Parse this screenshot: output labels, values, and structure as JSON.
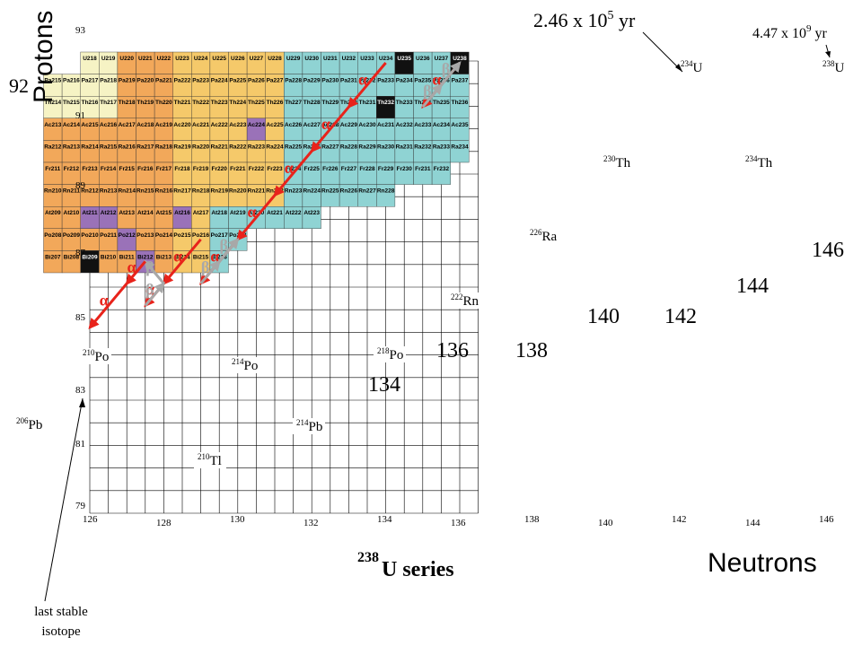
{
  "labels": {
    "protons": "Protons",
    "neutrons": "Neutrons",
    "series": "U series",
    "series_mass": "238",
    "last_stable": [
      "last stable",
      "isotope"
    ],
    "half_life_234u": "2.46 x 10",
    "half_life_234u_exp": "5",
    "half_life_234u_unit": " yr",
    "half_life_238u": "4.47 x 10",
    "half_life_238u_exp": "9",
    "half_life_238u_unit": " yr",
    "z92": "92"
  },
  "y_ticks": [
    "93",
    "91",
    "89",
    "87",
    "85",
    "83",
    "81",
    "79"
  ],
  "x_ticks": [
    "126",
    "128",
    "130",
    "132",
    "134",
    "136",
    "138",
    "140",
    "142",
    "144",
    "146"
  ],
  "big_neutron_labels": [
    "134",
    "136",
    "138",
    "140",
    "142",
    "144",
    "146"
  ],
  "nuclides": [
    {
      "mass": "238",
      "sym": "U"
    },
    {
      "mass": "234",
      "sym": "U"
    },
    {
      "mass": "234",
      "sym": "Th"
    },
    {
      "mass": "230",
      "sym": "Th"
    },
    {
      "mass": "226",
      "sym": "Ra"
    },
    {
      "mass": "222",
      "sym": "Rn"
    },
    {
      "mass": "218",
      "sym": "Po"
    },
    {
      "mass": "214",
      "sym": "Pb"
    },
    {
      "mass": "214",
      "sym": "Po"
    },
    {
      "mass": "210",
      "sym": "Po"
    },
    {
      "mass": "210",
      "sym": "Tl"
    },
    {
      "mass": "206",
      "sym": "Pb"
    }
  ],
  "decay_labels": {
    "alpha": "α",
    "beta": "β"
  },
  "grid_rows": [
    {
      "z": "U",
      "cells": [
        "U218",
        "U219",
        "U220",
        "U221",
        "U222",
        "U223",
        "U224",
        "U225",
        "U226",
        "U227",
        "U228",
        "U229",
        "U230",
        "U231",
        "U232",
        "U233",
        "U234",
        "U235",
        "U236",
        "U237",
        "U238"
      ]
    },
    {
      "z": "Pa",
      "cells": [
        "Pa215",
        "Pa216",
        "Pa217",
        "Pa218",
        "Pa219",
        "Pa220",
        "Pa221",
        "Pa222",
        "Pa223",
        "Pa224",
        "Pa225",
        "Pa226",
        "Pa227",
        "Pa228",
        "Pa229",
        "Pa230",
        "Pa231",
        "Pa232",
        "Pa233",
        "Pa234",
        "Pa235",
        "Pa236",
        "Pa237"
      ]
    },
    {
      "z": "Th",
      "cells": [
        "Th214",
        "Th215",
        "Th216",
        "Th217",
        "Th218",
        "Th219",
        "Th220",
        "Th221",
        "Th222",
        "Th223",
        "Th224",
        "Th225",
        "Th226",
        "Th227",
        "Th228",
        "Th229",
        "Th230",
        "Th231",
        "Th232",
        "Th233",
        "Th234",
        "Th235",
        "Th236"
      ]
    },
    {
      "z": "Ac",
      "cells": [
        "Ac213",
        "Ac214",
        "Ac215",
        "Ac216",
        "Ac217",
        "Ac218",
        "Ac219",
        "Ac220",
        "Ac221",
        "Ac222",
        "Ac223",
        "Ac224",
        "Ac225",
        "Ac226",
        "Ac227",
        "Ac228",
        "Ac229",
        "Ac230",
        "Ac231",
        "Ac232",
        "Ac233",
        "Ac234",
        "Ac235"
      ]
    },
    {
      "z": "Ra",
      "cells": [
        "Ra212",
        "Ra213",
        "Ra214",
        "Ra215",
        "Ra216",
        "Ra217",
        "Ra218",
        "Ra219",
        "Ra220",
        "Ra221",
        "Ra222",
        "Ra223",
        "Ra224",
        "Ra225",
        "Ra226",
        "Ra227",
        "Ra228",
        "Ra229",
        "Ra230",
        "Ra231",
        "Ra232",
        "Ra233",
        "Ra234"
      ]
    },
    {
      "z": "Fr",
      "cells": [
        "Fr211",
        "Fr212",
        "Fr213",
        "Fr214",
        "Fr215",
        "Fr216",
        "Fr217",
        "Fr218",
        "Fr219",
        "Fr220",
        "Fr221",
        "Fr222",
        "Fr223",
        "Fr224",
        "Fr225",
        "Fr226",
        "Fr227",
        "Fr228",
        "Fr229",
        "Fr230",
        "Fr231",
        "Fr232"
      ]
    },
    {
      "z": "Rn",
      "cells": [
        "Rn210",
        "Rn211",
        "Rn212",
        "Rn213",
        "Rn214",
        "Rn215",
        "Rn216",
        "Rn217",
        "Rn218",
        "Rn219",
        "Rn220",
        "Rn221",
        "Rn222",
        "Rn223",
        "Rn224",
        "Rn225",
        "Rn226",
        "Rn227",
        "Rn228"
      ]
    },
    {
      "z": "At",
      "cells": [
        "At209",
        "At210",
        "At211",
        "At212",
        "At213",
        "At214",
        "At215",
        "At216",
        "At217",
        "At218",
        "At219",
        "At220",
        "At221",
        "At222",
        "At223"
      ]
    },
    {
      "z": "Po",
      "cells": [
        "Po208",
        "Po209",
        "Po210",
        "Po211",
        "Po212",
        "Po213",
        "Po214",
        "Po215",
        "Po216",
        "Po217",
        "Po218"
      ]
    },
    {
      "z": "Bi",
      "cells": [
        "Bi207",
        "Bi208",
        "Bi209",
        "Bi210",
        "Bi211",
        "Bi212",
        "Bi213",
        "Bi214",
        "Bi215",
        "Bi216"
      ]
    }
  ],
  "colors": {
    "alpha_arrow": "#e8231b",
    "beta_arrow": "#a8a8a8",
    "stable": "#111111",
    "alpha_cell": "#f5c96a",
    "beta_cell": "#8fd3d3",
    "ec_cell": "#f2a85a",
    "unknown_cell": "#f6f3c4",
    "purple_cell": "#9a72b8",
    "highlight_cell": "#ffffff"
  }
}
